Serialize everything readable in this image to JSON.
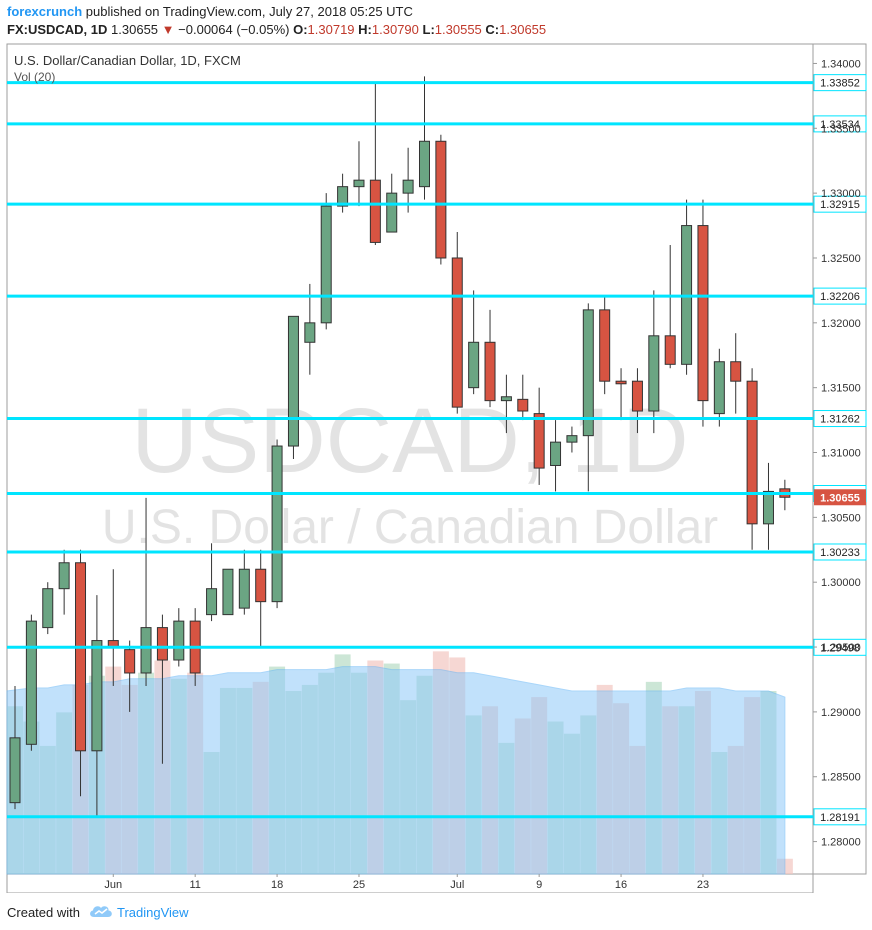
{
  "header": {
    "author": "forexcrunch",
    "published_text": " published on TradingView.com, July 27, 2018 05:25 UTC",
    "symbol": "FX:USDCAD, 1D",
    "last": "1.30655",
    "change": "−0.00064 (−0.05%)",
    "o_label": "O:",
    "o_value": "1.30719",
    "h_label": "H:",
    "h_value": "1.30790",
    "l_label": "L:",
    "l_value": "1.30555",
    "c_label": "C:",
    "c_value": "1.30655"
  },
  "pane": {
    "title": "U.S. Dollar/Canadian Dollar, 1D, FXCM",
    "volume_label": "Vol (20)"
  },
  "watermark": {
    "line1": "USDCAD, 1D",
    "line2": "U.S. Dollar / Canadian Dollar"
  },
  "footer": {
    "created_with": "Created with",
    "brand": "TradingView"
  },
  "colors": {
    "up": "#6ba583",
    "down": "#d75442",
    "level_line": "#00e5ff",
    "volume_ma": "#90caf9",
    "price_tag": "#d75442"
  },
  "chart_data": {
    "type": "candlestick",
    "y_axis": {
      "ticks": [
        "1.34000",
        "1.33500",
        "1.33000",
        "1.32500",
        "1.32000",
        "1.31500",
        "1.31000",
        "1.30500",
        "1.30000",
        "1.29500",
        "1.29000",
        "1.28500",
        "1.28000"
      ],
      "range": [
        1.2775,
        1.3415
      ]
    },
    "x_axis": {
      "labels": [
        "Jun",
        "11",
        "18",
        "25",
        "Jul",
        "9",
        "16",
        "23"
      ]
    },
    "levels": [
      "1.33852",
      "1.33534",
      "1.32915",
      "1.32206",
      "1.31262",
      "1.30684",
      "1.30233",
      "1.29498",
      "1.28191"
    ],
    "last_price_tag": "1.30655",
    "candles": [
      {
        "o": 1.283,
        "h": 1.292,
        "l": 1.2825,
        "c": 1.288
      },
      {
        "o": 1.2875,
        "h": 1.2975,
        "l": 1.287,
        "c": 1.297
      },
      {
        "o": 1.2965,
        "h": 1.3,
        "l": 1.296,
        "c": 1.2995
      },
      {
        "o": 1.2995,
        "h": 1.3025,
        "l": 1.2975,
        "c": 1.3015
      },
      {
        "o": 1.3015,
        "h": 1.3025,
        "l": 1.2835,
        "c": 1.287
      },
      {
        "o": 1.287,
        "h": 1.299,
        "l": 1.282,
        "c": 1.2955
      },
      {
        "o": 1.2955,
        "h": 1.301,
        "l": 1.292,
        "c": 1.295
      },
      {
        "o": 1.2948,
        "h": 1.2955,
        "l": 1.29,
        "c": 1.293
      },
      {
        "o": 1.293,
        "h": 1.3065,
        "l": 1.292,
        "c": 1.2965
      },
      {
        "o": 1.2965,
        "h": 1.2975,
        "l": 1.286,
        "c": 1.294
      },
      {
        "o": 1.294,
        "h": 1.298,
        "l": 1.2935,
        "c": 1.297
      },
      {
        "o": 1.297,
        "h": 1.298,
        "l": 1.292,
        "c": 1.293
      },
      {
        "o": 1.2975,
        "h": 1.303,
        "l": 1.297,
        "c": 1.2995
      },
      {
        "o": 1.2975,
        "h": 1.301,
        "l": 1.2975,
        "c": 1.301
      },
      {
        "o": 1.298,
        "h": 1.3025,
        "l": 1.2975,
        "c": 1.301
      },
      {
        "o": 1.301,
        "h": 1.3025,
        "l": 1.295,
        "c": 1.2985
      },
      {
        "o": 1.2985,
        "h": 1.311,
        "l": 1.298,
        "c": 1.3105
      },
      {
        "o": 1.3105,
        "h": 1.3205,
        "l": 1.3095,
        "c": 1.3205
      },
      {
        "o": 1.3185,
        "h": 1.323,
        "l": 1.316,
        "c": 1.32
      },
      {
        "o": 1.32,
        "h": 1.33,
        "l": 1.3195,
        "c": 1.329
      },
      {
        "o": 1.329,
        "h": 1.3315,
        "l": 1.3285,
        "c": 1.3305
      },
      {
        "o": 1.3305,
        "h": 1.334,
        "l": 1.329,
        "c": 1.331
      },
      {
        "o": 1.331,
        "h": 1.3385,
        "l": 1.326,
        "c": 1.3262
      },
      {
        "o": 1.327,
        "h": 1.3315,
        "l": 1.327,
        "c": 1.33
      },
      {
        "o": 1.33,
        "h": 1.3335,
        "l": 1.3285,
        "c": 1.331
      },
      {
        "o": 1.3305,
        "h": 1.339,
        "l": 1.3295,
        "c": 1.334
      },
      {
        "o": 1.334,
        "h": 1.3345,
        "l": 1.3245,
        "c": 1.325
      },
      {
        "o": 1.325,
        "h": 1.327,
        "l": 1.313,
        "c": 1.3135
      },
      {
        "o": 1.315,
        "h": 1.3225,
        "l": 1.3145,
        "c": 1.3185
      },
      {
        "o": 1.3185,
        "h": 1.321,
        "l": 1.3135,
        "c": 1.314
      },
      {
        "o": 1.314,
        "h": 1.316,
        "l": 1.3115,
        "c": 1.3143
      },
      {
        "o": 1.3141,
        "h": 1.316,
        "l": 1.3125,
        "c": 1.3132
      },
      {
        "o": 1.313,
        "h": 1.315,
        "l": 1.3075,
        "c": 1.3088
      },
      {
        "o": 1.309,
        "h": 1.3125,
        "l": 1.307,
        "c": 1.3108
      },
      {
        "o": 1.3108,
        "h": 1.312,
        "l": 1.31,
        "c": 1.3113
      },
      {
        "o": 1.3113,
        "h": 1.3215,
        "l": 1.307,
        "c": 1.321
      },
      {
        "o": 1.321,
        "h": 1.322,
        "l": 1.3145,
        "c": 1.3155
      },
      {
        "o": 1.3155,
        "h": 1.3165,
        "l": 1.3125,
        "c": 1.3153
      },
      {
        "o": 1.3155,
        "h": 1.3165,
        "l": 1.3115,
        "c": 1.3132
      },
      {
        "o": 1.3132,
        "h": 1.3225,
        "l": 1.3115,
        "c": 1.319
      },
      {
        "o": 1.319,
        "h": 1.326,
        "l": 1.3165,
        "c": 1.3168
      },
      {
        "o": 1.3168,
        "h": 1.3295,
        "l": 1.316,
        "c": 1.3275
      },
      {
        "o": 1.3275,
        "h": 1.3295,
        "l": 1.312,
        "c": 1.314
      },
      {
        "o": 1.313,
        "h": 1.318,
        "l": 1.312,
        "c": 1.317
      },
      {
        "o": 1.317,
        "h": 1.3192,
        "l": 1.313,
        "c": 1.3155
      },
      {
        "o": 1.3155,
        "h": 1.3165,
        "l": 1.3025,
        "c": 1.3045
      },
      {
        "o": 1.3045,
        "h": 1.3092,
        "l": 1.3025,
        "c": 1.307
      },
      {
        "o": 1.3072,
        "h": 1.3079,
        "l": 1.30555,
        "c": 1.30655
      }
    ],
    "volume": [
      55,
      50,
      42,
      53,
      62,
      65,
      68,
      62,
      66,
      70,
      64,
      66,
      40,
      61,
      61,
      63,
      68,
      60,
      62,
      66,
      72,
      66,
      70,
      69,
      57,
      65,
      73,
      71,
      52,
      55,
      43,
      51,
      58,
      50,
      46,
      52,
      62,
      56,
      42,
      63,
      55,
      55,
      60,
      40,
      42,
      58,
      60,
      5
    ],
    "volume_ma": [
      60,
      61,
      61,
      62,
      62,
      63,
      63,
      64,
      64,
      64,
      65,
      65,
      65,
      66,
      66,
      66,
      67,
      67,
      67,
      67,
      68,
      68,
      68,
      67,
      67,
      67,
      67,
      66,
      66,
      65,
      64,
      63,
      62,
      61,
      60,
      60,
      60,
      60,
      60,
      60,
      60,
      61,
      61,
      61,
      60,
      60,
      60,
      58
    ]
  }
}
